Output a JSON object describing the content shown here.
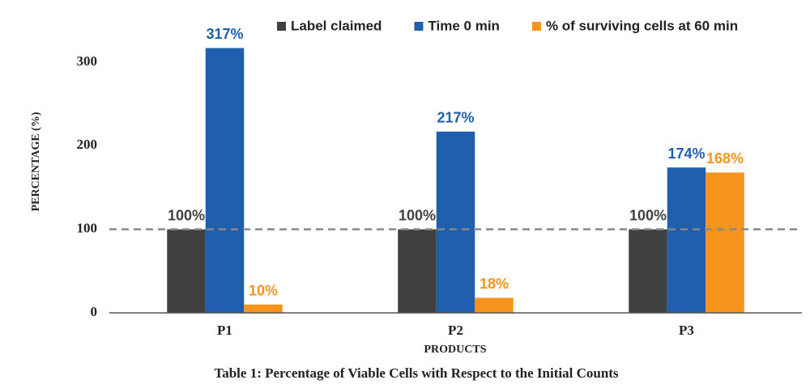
{
  "chart_data": {
    "type": "bar",
    "title": "Table 1: Percentage of Viable Cells with Respect to the Initial Counts",
    "x_label": "PRODUCTS",
    "y_label": "PERCENTAGE (%)",
    "categories": [
      "P1",
      "P2",
      "P3"
    ],
    "series": [
      {
        "name": "Label claimed",
        "color": "#404040",
        "values": [
          100,
          100,
          100
        ],
        "value_labels": [
          "100%",
          "100%",
          "100%"
        ]
      },
      {
        "name": "Time 0 min",
        "color": "#1f5fad",
        "values": [
          317,
          217,
          174
        ],
        "value_labels": [
          "317%",
          "217%",
          "174%"
        ]
      },
      {
        "name": "% of surviving cells at 60 min",
        "color": "#f7941d",
        "values": [
          10,
          18,
          168
        ],
        "value_labels": [
          "10%",
          "18%",
          "168%"
        ]
      }
    ],
    "ylim": [
      0,
      330
    ],
    "yticks": [
      0,
      100,
      200,
      300
    ],
    "reference_line": 100
  }
}
